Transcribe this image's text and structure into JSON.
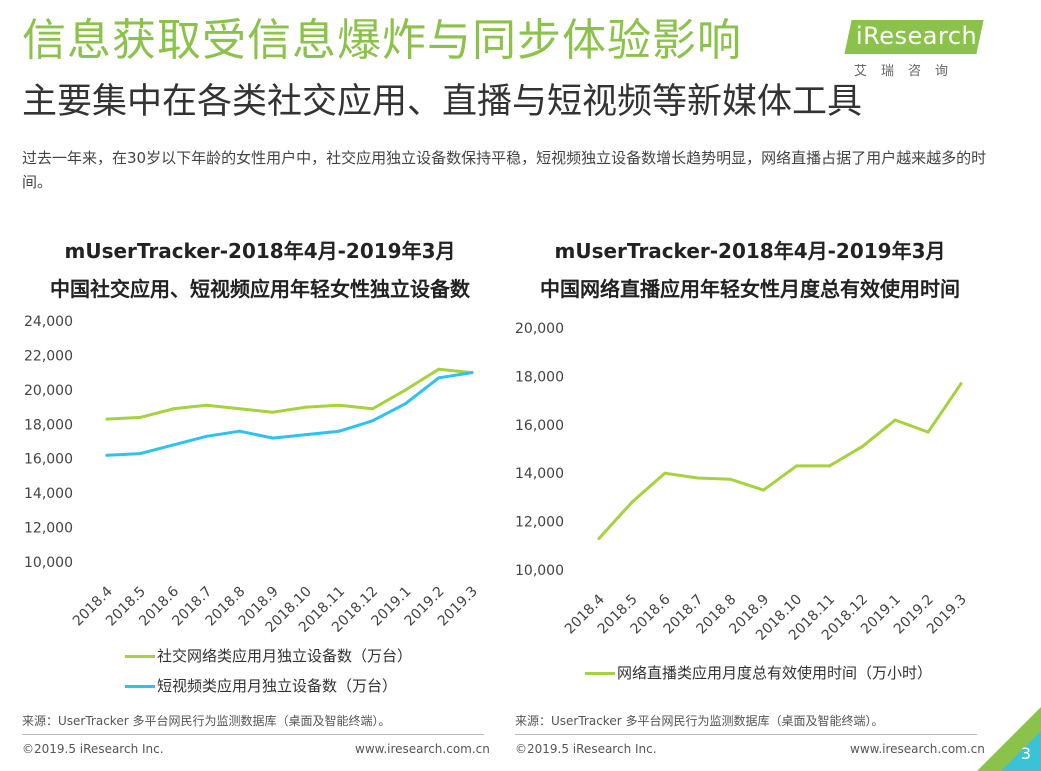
{
  "header": {
    "title": "信息获取受信息爆炸与同步体验影响",
    "subtitle": "主要集中在各类社交应用、直播与短视频等新媒体工具",
    "description": "过去一年来，在30岁以下年龄的女性用户中，社交应用独立设备数保持平稳，短视频独立设备数增长趋势明显，网络直播占据了用户越来越多的时间。"
  },
  "logo": {
    "brand": "iResearch",
    "sub": "艾瑞咨询"
  },
  "colors": {
    "green": "#a6d23c",
    "blue": "#2ec2ee",
    "title_green": "#8bc34a"
  },
  "chart_data": [
    {
      "type": "line",
      "title": "mUserTracker-2018年4月-2019年3月",
      "subtitle": "中国社交应用、短视频应用年轻女性独立设备数",
      "categories": [
        "2018.4",
        "2018.5",
        "2018.6",
        "2018.7",
        "2018.8",
        "2018.9",
        "2018.10",
        "2018.11",
        "2018.12",
        "2019.1",
        "2019.2",
        "2019.3"
      ],
      "ylim": [
        10000,
        24000
      ],
      "yticks": [
        "10,000",
        "12,000",
        "14,000",
        "16,000",
        "18,000",
        "20,000",
        "22,000",
        "24,000"
      ],
      "series": [
        {
          "name": "社交网络类应用月独立设备数（万台）",
          "color": "#a6d23c",
          "values": [
            18300,
            18400,
            18900,
            19100,
            18900,
            18700,
            19000,
            19100,
            18900,
            20000,
            21200,
            21000
          ]
        },
        {
          "name": "短视频类应用月独立设备数（万台）",
          "color": "#2ec2ee",
          "values": [
            16200,
            16300,
            16800,
            17300,
            17600,
            17200,
            17400,
            17600,
            18200,
            19200,
            20700,
            21000
          ]
        }
      ]
    },
    {
      "type": "line",
      "title": "mUserTracker-2018年4月-2019年3月",
      "subtitle": "中国网络直播应用年轻女性月度总有效使用时间",
      "categories": [
        "2018.4",
        "2018.5",
        "2018.6",
        "2018.7",
        "2018.8",
        "2018.9",
        "2018.10",
        "2018.11",
        "2018.12",
        "2019.1",
        "2019.2",
        "2019.3"
      ],
      "ylim": [
        10000,
        20000
      ],
      "yticks": [
        "10,000",
        "12,000",
        "14,000",
        "16,000",
        "18,000",
        "20,000"
      ],
      "series": [
        {
          "name": "网络直播类应用月度总有效使用时间（万小时）",
          "color": "#a6d23c",
          "values": [
            11300,
            12800,
            14000,
            13800,
            13750,
            13300,
            14300,
            14300,
            15100,
            16200,
            15700,
            17700
          ]
        }
      ]
    }
  ],
  "footer": {
    "left": {
      "source": "来源：UserTracker 多平台网民行为监测数据库（桌面及智能终端）。",
      "copyright": "©2019.5 iResearch Inc.",
      "url": "www.iresearch.com.cn"
    },
    "right": {
      "source": "来源：UserTracker 多平台网民行为监测数据库（桌面及智能终端）。",
      "copyright": "©2019.5 iResearch Inc.",
      "url": "www.iresearch.com.cn"
    },
    "page_number": "3"
  }
}
